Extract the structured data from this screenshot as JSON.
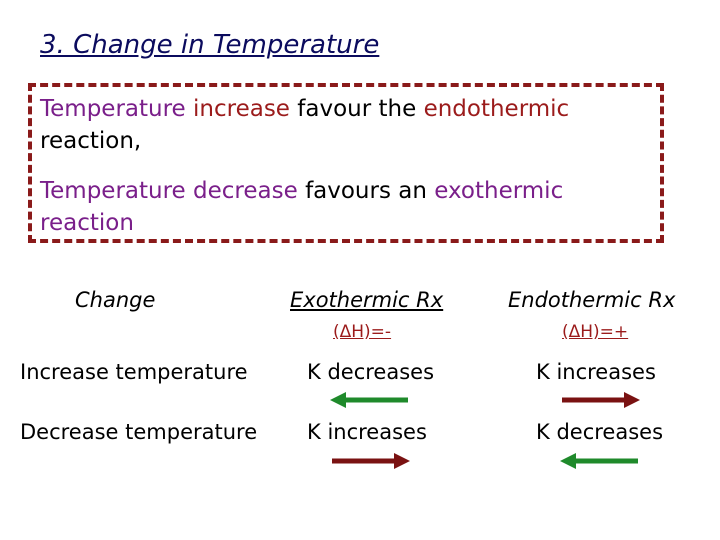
{
  "title": "3. Change in Temperature",
  "box": {
    "line1": {
      "w1": "Temperature",
      "w2": "increase",
      "w3": "favour the",
      "w4": "endothermic",
      "w5": "reaction,"
    },
    "line2": {
      "w1": "Temperature",
      "w2": "decrease",
      "w3": "favours an",
      "w4": "exothermic",
      "w5": "reaction"
    }
  },
  "table": {
    "headers": {
      "change": "Change",
      "exo": "Exothermic Rx",
      "endo": "Endothermic Rx"
    },
    "sub": {
      "exo": "(ΔH)=-",
      "endo": "(ΔH)=+"
    },
    "rows": [
      {
        "change": "Increase temperature",
        "exo": "K decreases",
        "endo": "K increases"
      },
      {
        "change": "Decrease temperature",
        "exo": "K increases",
        "endo": "K decreases"
      }
    ]
  },
  "arrows": [
    {
      "direction": "left",
      "color": "#1f8a2b"
    },
    {
      "direction": "right",
      "color": "#7a1212"
    },
    {
      "direction": "right",
      "color": "#7a1212"
    },
    {
      "direction": "left",
      "color": "#1f8a2b"
    }
  ]
}
